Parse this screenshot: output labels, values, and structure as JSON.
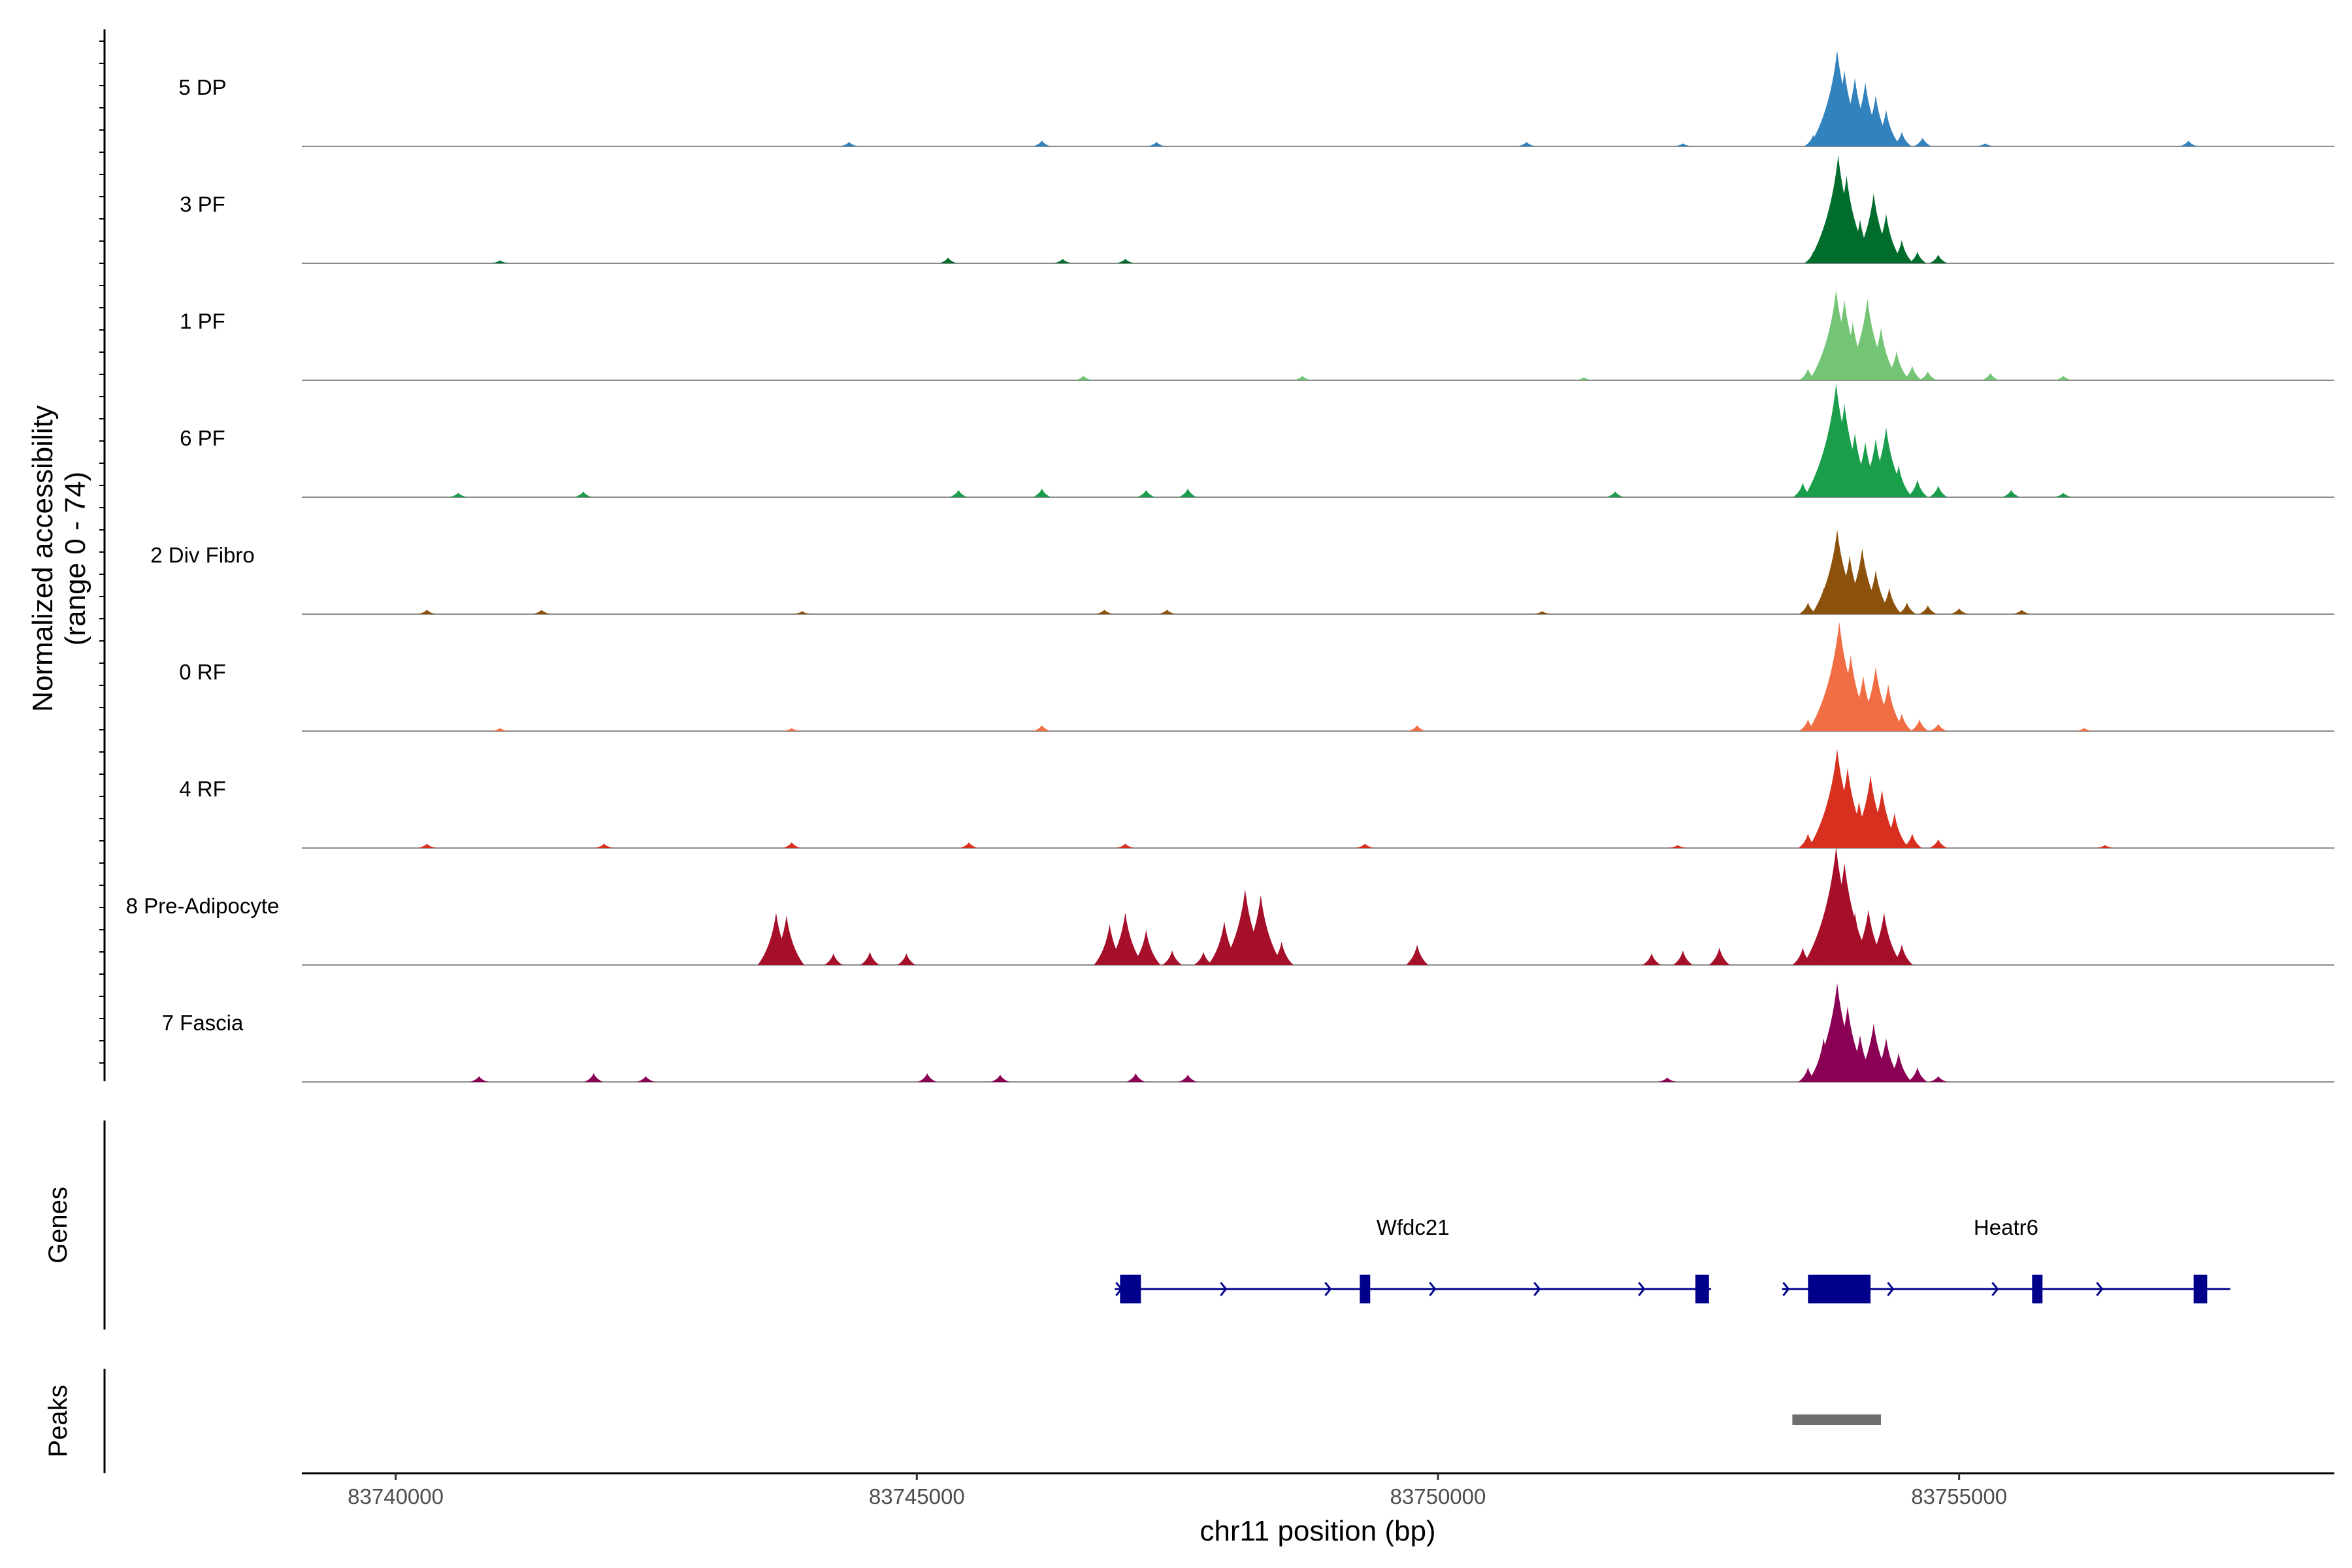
{
  "chart_data": {
    "type": "area",
    "title": "",
    "xlabel": "chr11 position (bp)",
    "ylabel": "Normalized accessibility",
    "ylabel_range": "(range 0 - 74)",
    "xlim": [
      83739100,
      83758600
    ],
    "ylim": [
      0,
      74
    ],
    "x_ticks": [
      83740000,
      83745000,
      83750000,
      83755000
    ],
    "x_tick_labels": [
      "83740000",
      "83745000",
      "83750000",
      "83755000"
    ],
    "tracks": [
      {
        "name": "5 DP",
        "color": "#3182bd",
        "peaks": [
          [
            83753600,
            8
          ],
          [
            83753750,
            20
          ],
          [
            83753830,
            66
          ],
          [
            83753900,
            52
          ],
          [
            83754000,
            47
          ],
          [
            83754100,
            44
          ],
          [
            83754200,
            35
          ],
          [
            83754300,
            25
          ],
          [
            83754450,
            10
          ],
          [
            83754650,
            6
          ],
          [
            83744350,
            3
          ],
          [
            83746200,
            4
          ],
          [
            83747300,
            3
          ],
          [
            83750850,
            3
          ],
          [
            83752350,
            2
          ],
          [
            83755250,
            2
          ],
          [
            83757200,
            4
          ]
        ]
      },
      {
        "name": "3 PF",
        "color": "#006d2c",
        "peaks": [
          [
            83753600,
            8
          ],
          [
            83753760,
            40
          ],
          [
            83753840,
            74
          ],
          [
            83753920,
            60
          ],
          [
            83754050,
            30
          ],
          [
            83754180,
            48
          ],
          [
            83754300,
            34
          ],
          [
            83754450,
            16
          ],
          [
            83754600,
            8
          ],
          [
            83754800,
            6
          ],
          [
            83745300,
            4
          ],
          [
            83746400,
            3
          ],
          [
            83747000,
            3
          ],
          [
            83741000,
            2
          ]
        ]
      },
      {
        "name": "1 PF",
        "color": "#74c476",
        "peaks": [
          [
            83753550,
            8
          ],
          [
            83753700,
            16
          ],
          [
            83753820,
            62
          ],
          [
            83753900,
            55
          ],
          [
            83753980,
            40
          ],
          [
            83754120,
            56
          ],
          [
            83754250,
            36
          ],
          [
            83754400,
            20
          ],
          [
            83754550,
            10
          ],
          [
            83754700,
            6
          ],
          [
            83755300,
            5
          ],
          [
            83746600,
            3
          ],
          [
            83748700,
            3
          ],
          [
            83751400,
            2
          ],
          [
            83756000,
            3
          ]
        ]
      },
      {
        "name": "6 PF",
        "color": "#1b9e4b",
        "peaks": [
          [
            83753500,
            10
          ],
          [
            83753650,
            20
          ],
          [
            83753820,
            78
          ],
          [
            83753900,
            64
          ],
          [
            83754000,
            44
          ],
          [
            83754100,
            38
          ],
          [
            83754200,
            40
          ],
          [
            83754300,
            48
          ],
          [
            83754420,
            22
          ],
          [
            83754600,
            12
          ],
          [
            83754800,
            8
          ],
          [
            83755500,
            5
          ],
          [
            83745400,
            5
          ],
          [
            83746200,
            6
          ],
          [
            83740600,
            3
          ],
          [
            83741800,
            4
          ],
          [
            83747200,
            5
          ],
          [
            83747600,
            6
          ],
          [
            83751700,
            4
          ],
          [
            83756000,
            3
          ]
        ]
      },
      {
        "name": "2 Div Fibro",
        "color": "#8c510a",
        "peaks": [
          [
            83753550,
            8
          ],
          [
            83753700,
            18
          ],
          [
            83753830,
            58
          ],
          [
            83753950,
            40
          ],
          [
            83754070,
            45
          ],
          [
            83754200,
            30
          ],
          [
            83754330,
            18
          ],
          [
            83754500,
            8
          ],
          [
            83754700,
            6
          ],
          [
            83755000,
            4
          ],
          [
            83755600,
            3
          ],
          [
            83740300,
            3
          ],
          [
            83741400,
            3
          ],
          [
            83743900,
            2
          ],
          [
            83746800,
            3
          ],
          [
            83747400,
            3
          ],
          [
            83751000,
            2
          ]
        ]
      },
      {
        "name": "0 RF",
        "color": "#f16d43",
        "peaks": [
          [
            83753550,
            8
          ],
          [
            83753700,
            16
          ],
          [
            83753850,
            75
          ],
          [
            83753960,
            52
          ],
          [
            83754080,
            38
          ],
          [
            83754200,
            44
          ],
          [
            83754320,
            32
          ],
          [
            83754450,
            12
          ],
          [
            83754620,
            8
          ],
          [
            83754800,
            5
          ],
          [
            83746200,
            4
          ],
          [
            83749800,
            4
          ],
          [
            83741000,
            2
          ],
          [
            83743800,
            2
          ],
          [
            83756200,
            2
          ]
        ]
      },
      {
        "name": "4 RF",
        "color": "#d7301f",
        "peaks": [
          [
            83753550,
            10
          ],
          [
            83753700,
            20
          ],
          [
            83753830,
            68
          ],
          [
            83753930,
            55
          ],
          [
            83754040,
            32
          ],
          [
            83754150,
            50
          ],
          [
            83754260,
            40
          ],
          [
            83754380,
            24
          ],
          [
            83754550,
            10
          ],
          [
            83754800,
            6
          ],
          [
            83740300,
            3
          ],
          [
            83742000,
            3
          ],
          [
            83743800,
            4
          ],
          [
            83745500,
            4
          ],
          [
            83747000,
            3
          ],
          [
            83749300,
            3
          ],
          [
            83752300,
            2
          ],
          [
            83756400,
            2
          ]
        ]
      },
      {
        "name": "8 Pre-Adipocyte",
        "color": "#a50f2a",
        "peaks": [
          [
            83743650,
            36
          ],
          [
            83743750,
            34
          ],
          [
            83744200,
            8
          ],
          [
            83744550,
            9
          ],
          [
            83744900,
            8
          ],
          [
            83746850,
            28
          ],
          [
            83747000,
            36
          ],
          [
            83747200,
            24
          ],
          [
            83747450,
            10
          ],
          [
            83747750,
            9
          ],
          [
            83747950,
            30
          ],
          [
            83748150,
            52
          ],
          [
            83748300,
            48
          ],
          [
            83748500,
            16
          ],
          [
            83749800,
            14
          ],
          [
            83752050,
            8
          ],
          [
            83752350,
            10
          ],
          [
            83752700,
            12
          ],
          [
            83753500,
            12
          ],
          [
            83753650,
            22
          ],
          [
            83753820,
            81
          ],
          [
            83753900,
            70
          ],
          [
            83754000,
            36
          ],
          [
            83754130,
            38
          ],
          [
            83754280,
            36
          ],
          [
            83754450,
            14
          ]
        ]
      },
      {
        "name": "7 Fascia",
        "color": "#8a0055",
        "peaks": [
          [
            83753550,
            10
          ],
          [
            83753700,
            30
          ],
          [
            83753830,
            68
          ],
          [
            83753930,
            52
          ],
          [
            83754050,
            32
          ],
          [
            83754180,
            40
          ],
          [
            83754300,
            30
          ],
          [
            83754420,
            20
          ],
          [
            83754600,
            10
          ],
          [
            83754800,
            4
          ],
          [
            83740800,
            4
          ],
          [
            83741900,
            6
          ],
          [
            83742400,
            4
          ],
          [
            83745100,
            6
          ],
          [
            83745800,
            5
          ],
          [
            83747100,
            6
          ],
          [
            83747600,
            5
          ],
          [
            83752200,
            3
          ]
        ]
      }
    ],
    "genes": [
      {
        "name": "Wfdc21",
        "start": 83746900,
        "end": 83752620,
        "strand": "+",
        "exons": [
          [
            83746950,
            83747150
          ],
          [
            83749250,
            83749350
          ],
          [
            83752470,
            83752600
          ]
        ]
      },
      {
        "name": "Heatr6",
        "start": 83753300,
        "end": 83757600,
        "strand": "+",
        "exons": [
          [
            83753550,
            83754150
          ],
          [
            83755700,
            83755800
          ],
          [
            83757250,
            83757380
          ]
        ]
      }
    ],
    "peaks_track": [
      [
        83753400,
        83754250
      ]
    ],
    "side_labels": {
      "genes": "Genes",
      "peaks": "Peaks"
    }
  }
}
